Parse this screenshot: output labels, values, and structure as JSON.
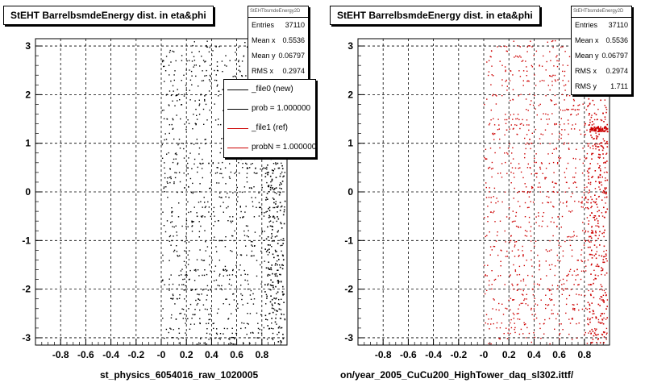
{
  "pads": [
    {
      "title": "StEHT BarrelbsmdeEnergy dist. in eta&phi",
      "stats": {
        "header": "StEHTbsmdeEnergy2D",
        "rows": [
          {
            "label": "Entries",
            "value": "37110"
          },
          {
            "label": "Mean x",
            "value": "0.5536"
          },
          {
            "label": "Mean y",
            "value": "0.06797"
          },
          {
            "label": "RMS x",
            "value": "0.2974"
          }
        ]
      },
      "legend": [
        {
          "label": "_file0 (new)",
          "color": "#000000"
        },
        {
          "label": "prob = 1.000000",
          "color": "#000000"
        },
        {
          "label": "_file1 (ref)",
          "color": "#cc0000"
        },
        {
          "label": "probN = 1.000000",
          "color": "#cc0000"
        }
      ],
      "footer": "st_physics_6054016_raw_1020005"
    },
    {
      "title": "StEHT BarrelbsmdeEnergy dist. in eta&phi",
      "stats": {
        "header": "StEHTbsmdeEnergy2D",
        "rows": [
          {
            "label": "Entries",
            "value": "37110"
          },
          {
            "label": "Mean x",
            "value": "0.5536"
          },
          {
            "label": "Mean y",
            "value": "0.06797"
          },
          {
            "label": "RMS x",
            "value": "0.2974"
          },
          {
            "label": "RMS y",
            "value": "1.711"
          }
        ]
      },
      "footer": "on/year_2005_CuCu200_HighTower_daq_sl302.ittf/"
    }
  ],
  "chart_data": [
    {
      "type": "scatter",
      "title": "StEHT BarrelbsmdeEnergy dist. in eta&phi",
      "xlim": [
        -1,
        1
      ],
      "ylim": [
        -3.15,
        3.15
      ],
      "xticks": [
        "-0.8",
        "-0.6",
        "-0.4",
        "-0.2",
        "-0",
        "0.2",
        "0.4",
        "0.6",
        "0.8"
      ],
      "yticks": [
        "-3",
        "-2",
        "-1",
        "0",
        "1",
        "2",
        "3"
      ],
      "grid": true,
      "x_occupied_range": [
        0,
        0.98
      ],
      "series": [
        {
          "name": "_file0 (new)",
          "color": "#000000"
        }
      ]
    },
    {
      "type": "scatter",
      "title": "StEHT BarrelbsmdeEnergy dist. in eta&phi",
      "xlim": [
        -1,
        1
      ],
      "ylim": [
        -3.15,
        3.15
      ],
      "xticks": [
        "-0.8",
        "-0.6",
        "-0.4",
        "-0.2",
        "-0",
        "0.2",
        "0.4",
        "0.6",
        "0.8"
      ],
      "yticks": [
        "-3",
        "-2",
        "-1",
        "0",
        "1",
        "2",
        "3"
      ],
      "grid": true,
      "x_occupied_range": [
        0,
        0.98
      ],
      "series": [
        {
          "name": "_file1 (ref)",
          "color": "#cc0000"
        }
      ]
    }
  ]
}
